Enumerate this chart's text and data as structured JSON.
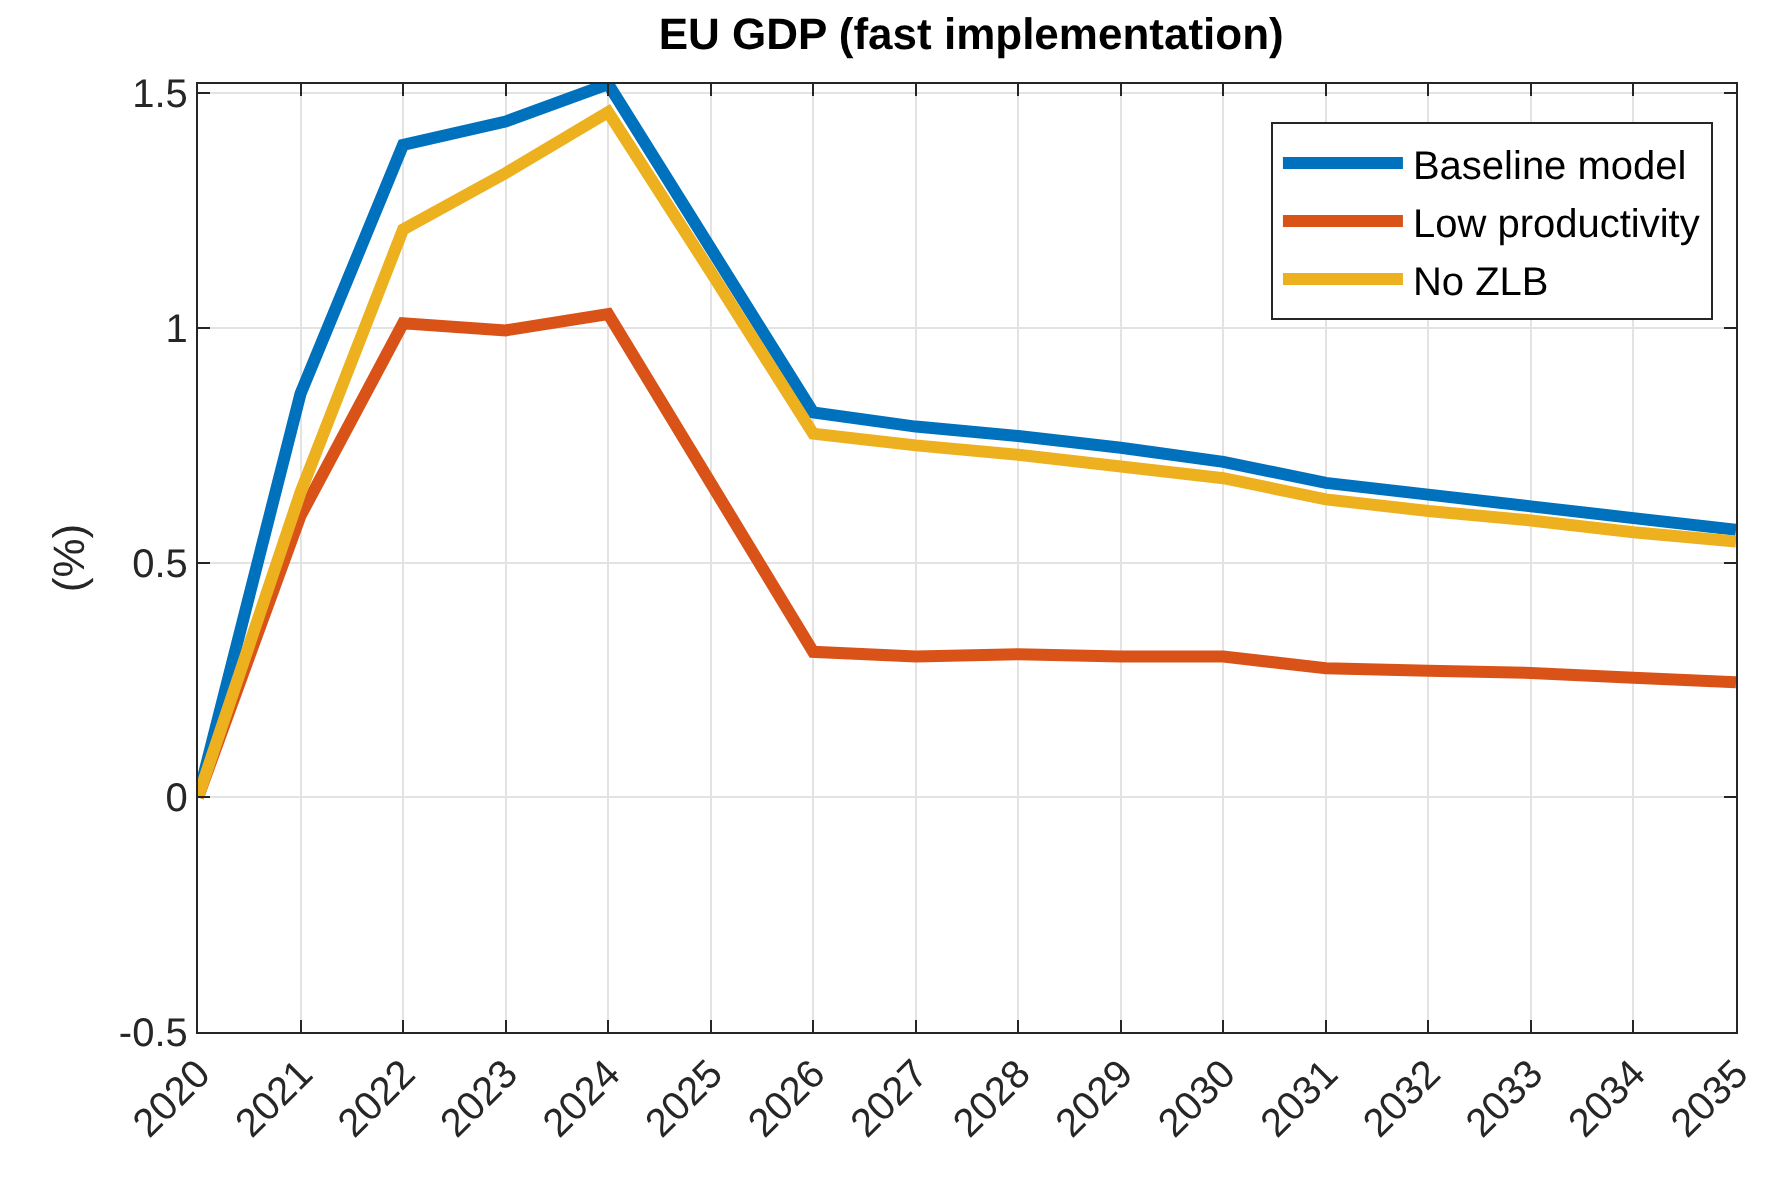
{
  "chart_data": {
    "type": "line",
    "title": "EU GDP (fast implementation)",
    "ylabel": "(%)",
    "x": [
      2020,
      2021,
      2022,
      2023,
      2024,
      2025,
      2026,
      2027,
      2028,
      2029,
      2030,
      2031,
      2032,
      2033,
      2034,
      2035
    ],
    "series": [
      {
        "name": "Baseline model",
        "color": "#0072bd",
        "values": [
          0,
          0.86,
          1.39,
          1.44,
          1.52,
          1.17,
          0.82,
          0.79,
          0.77,
          0.745,
          0.715,
          0.67,
          0.645,
          0.62,
          0.595,
          0.57
        ]
      },
      {
        "name": "Low productivity",
        "color": "#d95319",
        "values": [
          0,
          0.6,
          1.01,
          0.995,
          1.03,
          0.67,
          0.31,
          0.3,
          0.305,
          0.3,
          0.3,
          0.275,
          0.27,
          0.265,
          0.255,
          0.245
        ]
      },
      {
        "name": "No ZLB",
        "color": "#edb120",
        "values": [
          0,
          0.65,
          1.21,
          1.33,
          1.46,
          1.12,
          0.775,
          0.75,
          0.73,
          0.705,
          0.68,
          0.635,
          0.61,
          0.59,
          0.565,
          0.545
        ]
      }
    ],
    "xlim": [
      2020,
      2035
    ],
    "xticks": [
      2020,
      2021,
      2022,
      2023,
      2024,
      2025,
      2026,
      2027,
      2028,
      2029,
      2030,
      2031,
      2032,
      2033,
      2034,
      2035
    ],
    "ylim": [
      -0.5,
      1.52
    ],
    "yticks": [
      -0.5,
      0,
      0.5,
      1,
      1.5
    ],
    "grid": true,
    "legend": "top right",
    "marker": "none",
    "line_style": "solid"
  }
}
